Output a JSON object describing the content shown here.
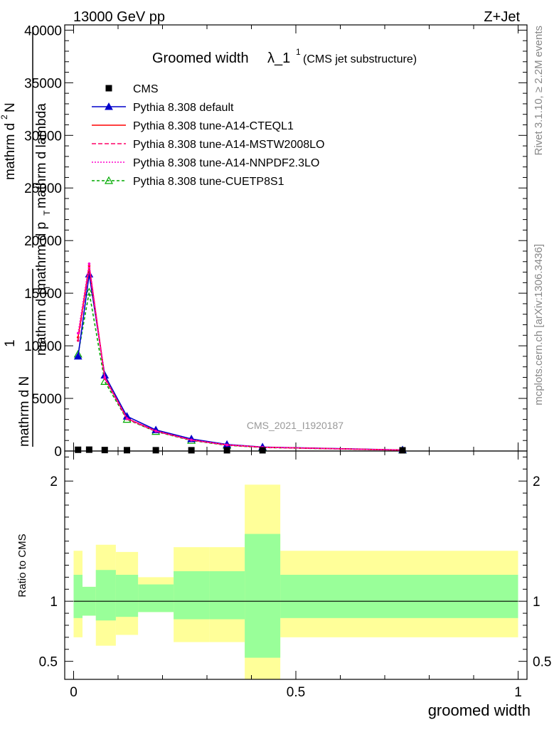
{
  "header": {
    "energy_label": "13000 GeV pp",
    "process_label": "Z+Jet"
  },
  "side_labels": {
    "rivet": "Rivet 3.1.10, ≥ 2.2M events",
    "mcplots": "mcplots.cern.ch [arXiv:1306.3436]"
  },
  "watermark": "CMS_2021_I1920187",
  "colors": {
    "cms": "#000000",
    "default": "#0000cc",
    "cteql1": "#ff0000",
    "mstw": "#ff0066",
    "nnpdf": "#ff00cc",
    "cuetp8s1": "#00aa00",
    "band_outer": "#ffff99",
    "band_inner": "#99ff99"
  },
  "chart_data": {
    "type": "line",
    "title_main": "Groomed width",
    "title_lambda": "λ_1",
    "title_sup": "1",
    "title_sub": "(CMS jet substructure)",
    "xlabel": "groomed width",
    "ylabel_top_numerator": "1",
    "ylabel_top_denominator": "mathrm d N",
    "ylabel_top_rest1": "mathrm d p",
    "ylabel_top_rest2": "T",
    "ylabel_top_rest3": "mathrm d lambda",
    "ylabel_top_rest4": "mathrm d p",
    "ylabel_top_rest5": "T",
    "ylabel_top_rest6": "mathrm d lambda",
    "ylabel_top_rest7": "mathrm d",
    "ylabel_top_rest8": "N",
    "ylabel_top_rest9": "mathrm d",
    "ylabel_top_rest10": "2",
    "ylabel_main_num": "mathrm d",
    "ylabel_main_num_sup": "2",
    "ylabel_main_num_n": "N",
    "ylabel_main_den": "mathrm d p",
    "ylabel_main_den_sub": "T",
    "ylabel_main_den2": "mathrm d lambda",
    "ylabel_prefix_num": "1",
    "ylabel_prefix_den": "mathrm d N",
    "ylabel_prefix_den2": "mathrm d p",
    "ylabel_prefix_den2_sub": "T",
    "ylabel_ratio": "Ratio to CMS",
    "xlim": [
      -0.02,
      1.02
    ],
    "ylim": [
      0,
      40500
    ],
    "ratio_ylim": [
      0.35,
      2.25
    ],
    "x_ticks": [
      {
        "v": 0,
        "label": "0"
      },
      {
        "v": 0.5,
        "label": "0.5"
      },
      {
        "v": 1,
        "label": "1"
      }
    ],
    "y_ticks": [
      {
        "v": 0,
        "label": "0"
      },
      {
        "v": 5000,
        "label": "5000"
      },
      {
        "v": 10000,
        "label": "10000"
      },
      {
        "v": 15000,
        "label": "15000"
      },
      {
        "v": 20000,
        "label": "20000"
      },
      {
        "v": 25000,
        "label": "25000"
      },
      {
        "v": 30000,
        "label": "30000"
      },
      {
        "v": 35000,
        "label": "35000"
      },
      {
        "v": 40000,
        "label": "40000"
      }
    ],
    "ratio_ticks": [
      {
        "v": 0.5,
        "label": "0.5"
      },
      {
        "v": 1,
        "label": "1"
      },
      {
        "v": 2,
        "label": "2"
      }
    ],
    "cms": {
      "name": "CMS",
      "x": [
        0.01,
        0.035,
        0.07,
        0.12,
        0.185,
        0.265,
        0.345,
        0.425,
        0.74
      ],
      "y": [
        50,
        60,
        25,
        12,
        8,
        5,
        3,
        2,
        0.5
      ]
    },
    "series": [
      {
        "key": "default",
        "name": "Pythia 8.308 default",
        "marker": "triangle",
        "dash": "",
        "x": [
          0.01,
          0.035,
          0.07,
          0.12,
          0.185,
          0.265,
          0.345,
          0.425,
          0.74
        ],
        "y": [
          9000,
          16800,
          7200,
          3300,
          2000,
          1150,
          620,
          380,
          100
        ]
      },
      {
        "key": "cteql1",
        "name": "Pythia 8.308 tune-A14-CTEQL1",
        "marker": "none",
        "dash": "",
        "x": [
          0.01,
          0.035,
          0.07,
          0.12,
          0.185,
          0.265,
          0.345,
          0.425,
          0.74
        ],
        "y": [
          10800,
          17600,
          7000,
          3100,
          1900,
          1050,
          580,
          360,
          90
        ]
      },
      {
        "key": "mstw",
        "name": "Pythia 8.308 tune-A14-MSTW2008LO",
        "marker": "none",
        "dash": "6,3",
        "x": [
          0.01,
          0.035,
          0.07,
          0.12,
          0.185,
          0.265,
          0.345,
          0.425,
          0.74
        ],
        "y": [
          10500,
          17400,
          6900,
          3050,
          1880,
          1040,
          570,
          355,
          90
        ]
      },
      {
        "key": "nnpdf",
        "name": "Pythia 8.308 tune-A14-NNPDF2.3LO",
        "marker": "none",
        "dash": "2,2",
        "x": [
          0.01,
          0.035,
          0.07,
          0.12,
          0.185,
          0.265,
          0.345,
          0.425,
          0.74
        ],
        "y": [
          11200,
          17800,
          7000,
          3100,
          1900,
          1050,
          580,
          360,
          90
        ]
      },
      {
        "key": "cuetp8s1",
        "name": "Pythia 8.308 tune-CUETP8S1",
        "marker": "open-triangle",
        "dash": "4,3",
        "x": [
          0.01,
          0.035,
          0.07,
          0.12,
          0.185,
          0.265,
          0.345,
          0.425,
          0.74
        ],
        "y": [
          9200,
          15100,
          6600,
          3000,
          1850,
          1000,
          540,
          330,
          80
        ]
      }
    ],
    "ratio_bands": [
      {
        "x0": 0.0,
        "x1": 0.02,
        "outer": [
          0.7,
          1.42
        ],
        "inner": [
          0.86,
          1.22
        ]
      },
      {
        "x0": 0.02,
        "x1": 0.05,
        "outer": [
          0.88,
          1.12
        ],
        "inner": [
          0.88,
          1.12
        ]
      },
      {
        "x0": 0.05,
        "x1": 0.095,
        "outer": [
          0.63,
          1.47
        ],
        "inner": [
          0.84,
          1.26
        ]
      },
      {
        "x0": 0.095,
        "x1": 0.145,
        "outer": [
          0.72,
          1.41
        ],
        "inner": [
          0.87,
          1.22
        ]
      },
      {
        "x0": 0.145,
        "x1": 0.225,
        "outer": [
          0.91,
          1.2
        ],
        "inner": [
          0.91,
          1.14
        ]
      },
      {
        "x0": 0.225,
        "x1": 0.305,
        "outer": [
          0.66,
          1.45
        ],
        "inner": [
          0.85,
          1.25
        ]
      },
      {
        "x0": 0.305,
        "x1": 0.385,
        "outer": [
          0.66,
          1.45
        ],
        "inner": [
          0.85,
          1.25
        ]
      },
      {
        "x0": 0.385,
        "x1": 0.465,
        "outer": [
          0.35,
          1.97
        ],
        "inner": [
          0.53,
          1.56
        ]
      },
      {
        "x0": 0.465,
        "x1": 1.0,
        "outer": [
          0.7,
          1.42
        ],
        "inner": [
          0.86,
          1.22
        ]
      }
    ]
  }
}
